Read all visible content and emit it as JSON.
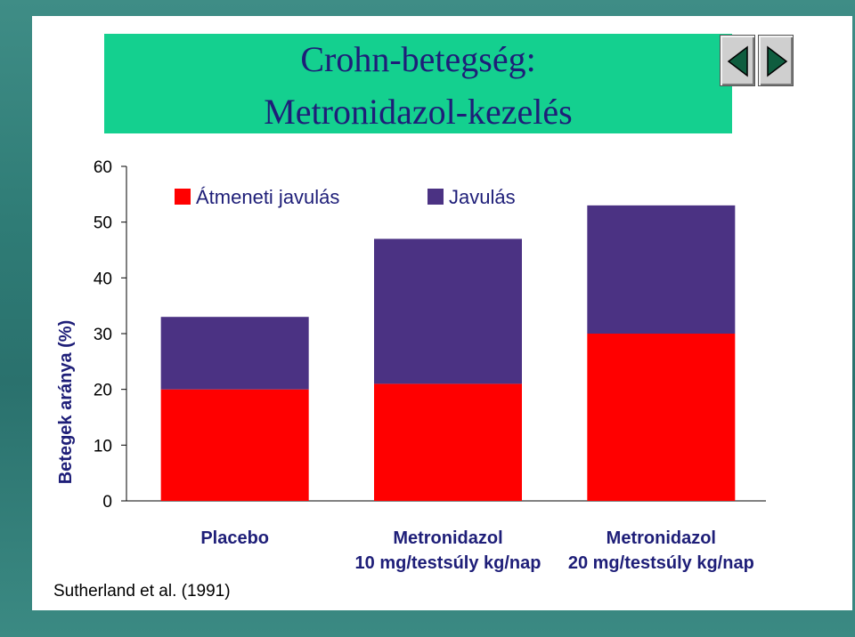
{
  "slide": {
    "title_line1": "Crohn-betegség:",
    "title_line2": "Metronidazol-kezelés",
    "citation": "Sutherland et al. (1991)",
    "accent_color": "#14d08f",
    "nav": [
      "prev-slide-icon",
      "next-slide-icon"
    ]
  },
  "chart_data": {
    "type": "bar",
    "stacked": true,
    "ylabel": "Betegek aránya (%)",
    "xlabel": "",
    "ylim": [
      0,
      60
    ],
    "yticks": [
      0,
      10,
      20,
      30,
      40,
      50,
      60
    ],
    "grid": false,
    "legend_position": "top",
    "categories": [
      [
        "Placebo"
      ],
      [
        "Metronidazol",
        "10 mg/testsúly kg/nap"
      ],
      [
        "Metronidazol",
        "20 mg/testsúly kg/nap"
      ]
    ],
    "series": [
      {
        "name": "Átmeneti javulás",
        "color": "#ff0000",
        "values": [
          20,
          21,
          30
        ]
      },
      {
        "name": "Javulás",
        "color": "#4b3283",
        "values": [
          13,
          26,
          23
        ]
      }
    ]
  }
}
